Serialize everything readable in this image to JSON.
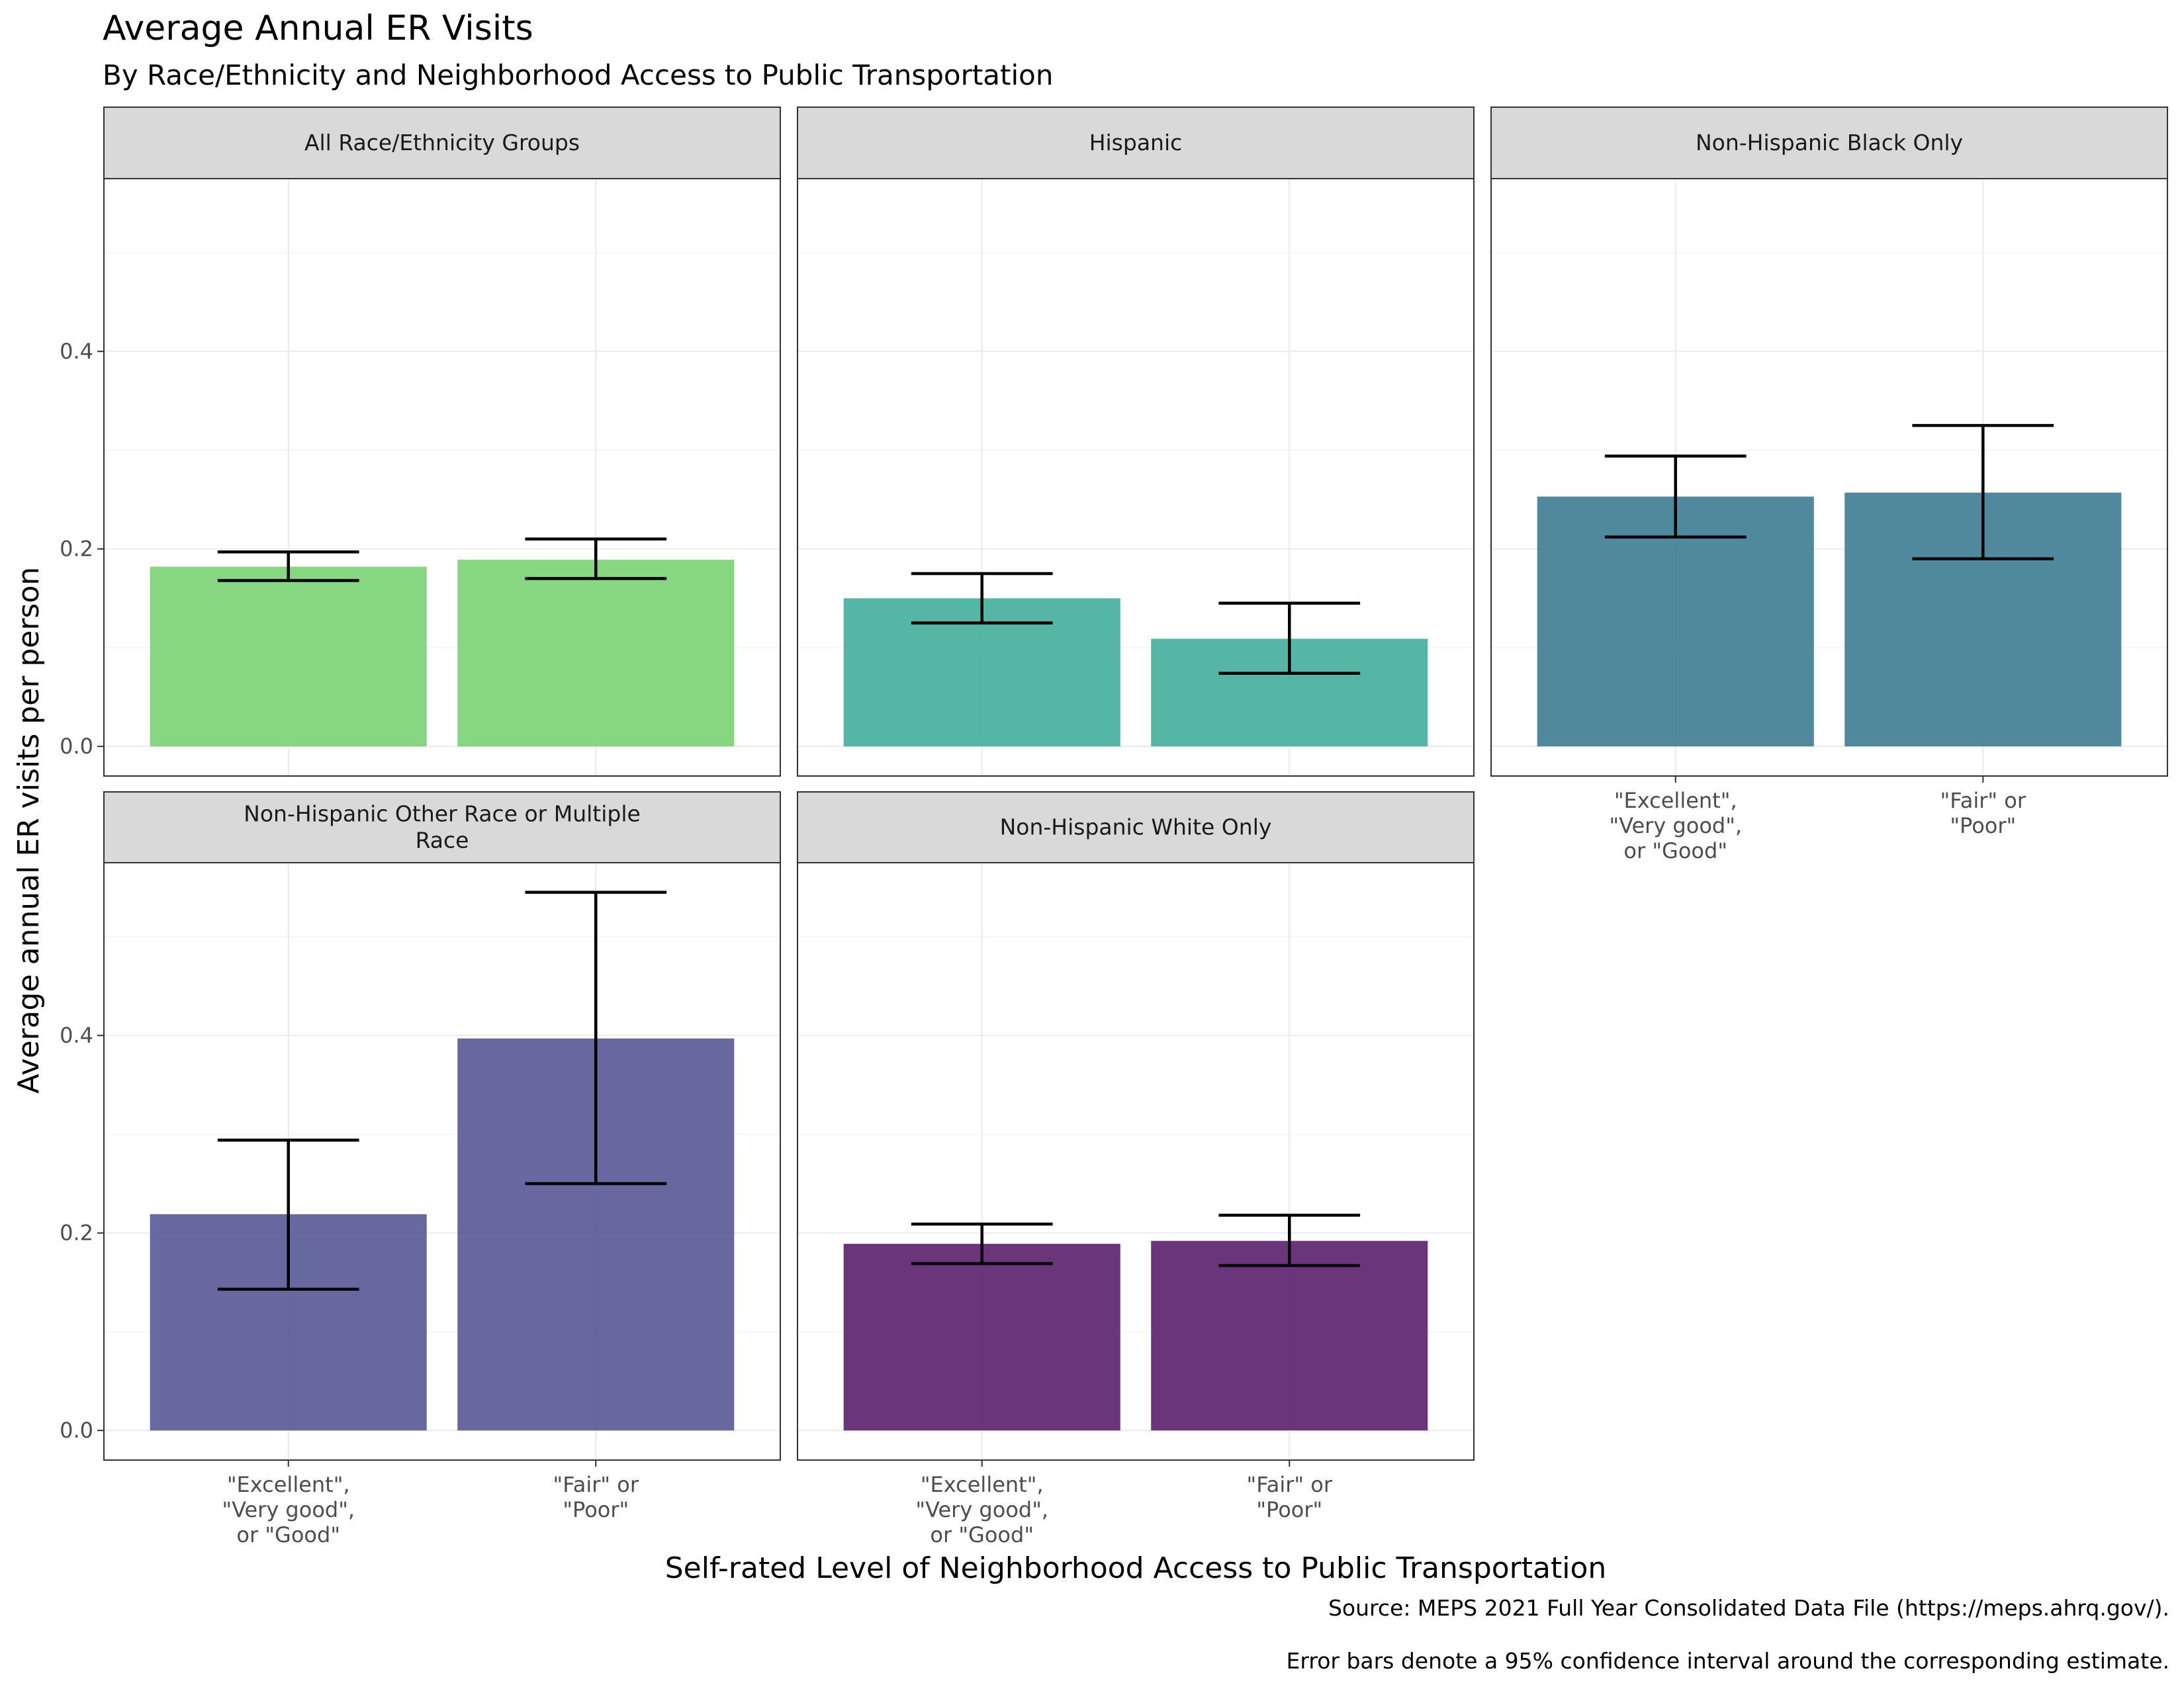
{
  "chart_data": {
    "type": "bar",
    "title": "Average Annual ER Visits",
    "subtitle": "By Race/Ethnicity and Neighborhood Access to Public Transportation",
    "xlabel": "Self-rated Level of Neighborhood Access to Public Transportation",
    "ylabel": "Average annual ER visits per person",
    "categories": [
      "\"Excellent\", \"Very good\", or \"Good\"",
      "\"Fair\" or \"Poor\""
    ],
    "category_label_lines": [
      [
        "\"Excellent\",",
        "\"Very good\",",
        "or \"Good\""
      ],
      [
        "\"Fair\" or",
        "\"Poor\""
      ]
    ],
    "ylim": [
      -0.03,
      0.575
    ],
    "y_ticks": [
      0.0,
      0.2,
      0.4
    ],
    "y_tick_labels": [
      "0.0",
      "0.2",
      "0.4"
    ],
    "grid": true,
    "legend": "none",
    "facets": [
      {
        "label_lines": [
          "All Race/Ethnicity Groups"
        ],
        "color": "#7ad173",
        "values": [
          0.182,
          0.189
        ],
        "ci": [
          [
            0.168,
            0.197
          ],
          [
            0.17,
            0.21
          ]
        ]
      },
      {
        "label_lines": [
          "Hispanic"
        ],
        "color": "#43ae9c",
        "values": [
          0.15,
          0.109
        ],
        "ci": [
          [
            0.125,
            0.175
          ],
          [
            0.074,
            0.145
          ]
        ]
      },
      {
        "label_lines": [
          "Non-Hispanic Black Only"
        ],
        "color": "#3d7b92",
        "values": [
          0.253,
          0.257
        ],
        "ci": [
          [
            0.212,
            0.294
          ],
          [
            0.19,
            0.325
          ]
        ]
      },
      {
        "label_lines": [
          "Non-Hispanic Other Race or Multiple",
          "Race"
        ],
        "color": "#575896",
        "values": [
          0.219,
          0.397
        ],
        "ci": [
          [
            0.143,
            0.294
          ],
          [
            0.25,
            0.545
          ]
        ]
      },
      {
        "label_lines": [
          "Non-Hispanic White Only"
        ],
        "color": "#5b1f6d",
        "values": [
          0.189,
          0.192
        ],
        "ci": [
          [
            0.169,
            0.209
          ],
          [
            0.167,
            0.218
          ]
        ]
      }
    ],
    "caption_lines": [
      "Source: MEPS 2021 Full Year Consolidated Data File (https://meps.ahrq.gov/).",
      "Error bars denote a 95% confidence interval around the corresponding estimate."
    ]
  }
}
